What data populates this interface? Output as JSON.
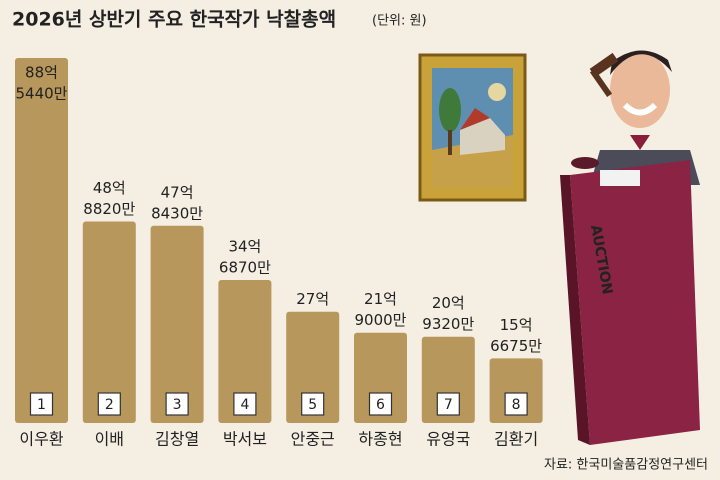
{
  "chart_data": {
    "type": "bar",
    "title": "2026년 상반기 주요 한국작가 낙찰총액",
    "unit_note": "(단위: 원)",
    "source": "자료: 한국미술품감정연구센터",
    "categories": [
      "이우환",
      "이배",
      "김창열",
      "박서보",
      "안중근",
      "하종현",
      "유영국",
      "김환기"
    ],
    "ranks": [
      1,
      2,
      3,
      4,
      5,
      6,
      7,
      8
    ],
    "values": [
      8854400000,
      4888200000,
      4784300000,
      3468700000,
      2700000000,
      2190000000,
      2093200000,
      1566750000
    ],
    "value_labels": [
      [
        "88억",
        "5440만"
      ],
      [
        "48억",
        "8820만"
      ],
      [
        "47억",
        "8430만"
      ],
      [
        "34억",
        "6870만"
      ],
      [
        "27억"
      ],
      [
        "21억",
        "9000만"
      ],
      [
        "20억",
        "9320만"
      ],
      [
        "15억",
        "6675만"
      ]
    ],
    "color": "#b8975d",
    "illustration_text": "AUCTION"
  }
}
